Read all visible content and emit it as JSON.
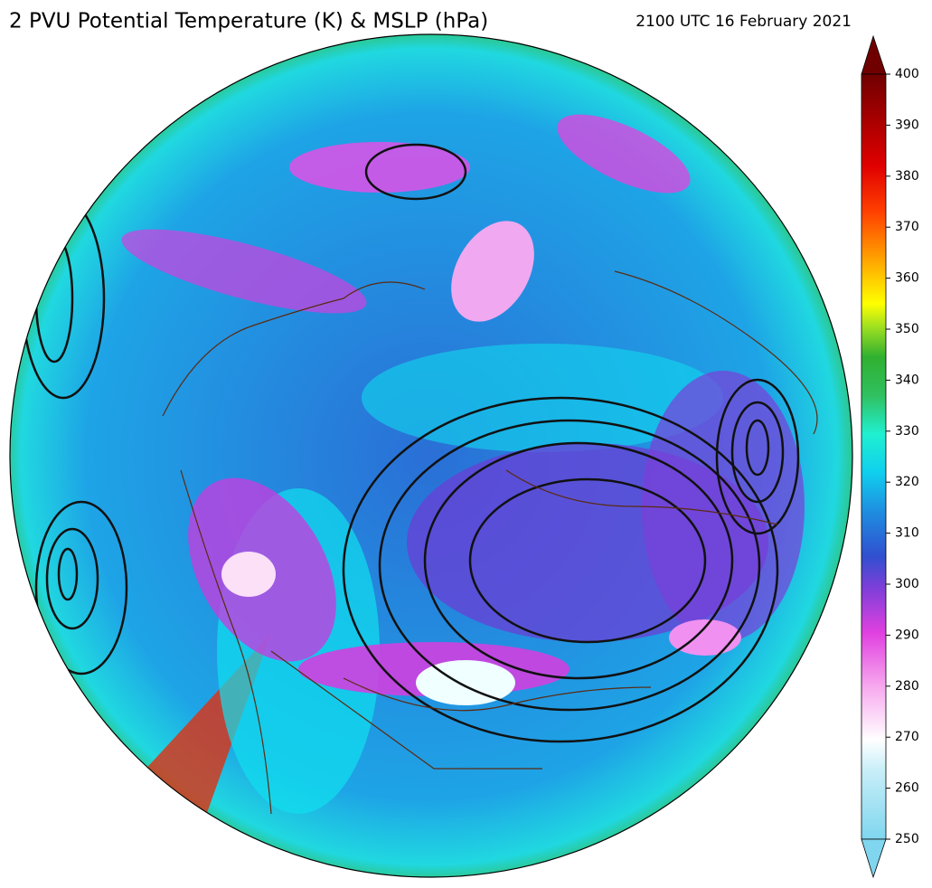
{
  "header": {
    "title": "2 PVU Potential Temperature (K) & MSLP (hPa)",
    "time": "2100 UTC 16 February 2021"
  },
  "colorbar": {
    "lim": [
      250,
      400
    ],
    "ticks": [
      250,
      260,
      270,
      280,
      290,
      300,
      310,
      320,
      330,
      340,
      350,
      360,
      370,
      380,
      390,
      400
    ]
  }
}
